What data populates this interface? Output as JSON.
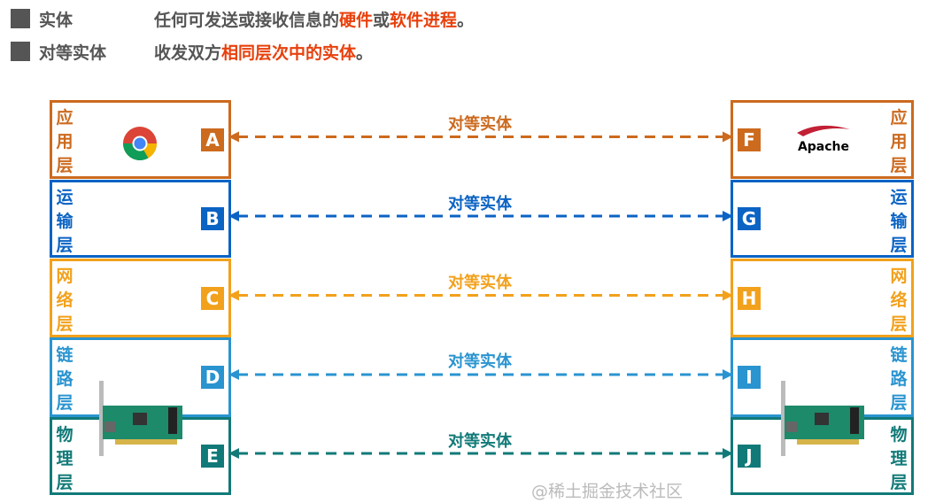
{
  "definitions": [
    {
      "term": "实体",
      "desc_pre": "任何可发送或接收信息的",
      "hl1": "硬件",
      "mid": "或",
      "hl2": "软件进程",
      "post": "。"
    },
    {
      "term": "对等实体",
      "desc_pre": "收发双方",
      "hl1": "相同层次中的实体",
      "mid": "",
      "hl2": "",
      "post": "。"
    }
  ],
  "link_label": "对等实体",
  "layers": [
    {
      "name": "应用层",
      "left": "A",
      "right": "F",
      "color": "#cc6a1e"
    },
    {
      "name": "运输层",
      "left": "B",
      "right": "G",
      "color": "#0b63c4"
    },
    {
      "name": "网络层",
      "left": "C",
      "right": "H",
      "color": "#f2a11c"
    },
    {
      "name": "链路层",
      "left": "D",
      "right": "I",
      "color": "#2a94d0"
    },
    {
      "name": "物理层",
      "left": "E",
      "right": "J",
      "color": "#117a78"
    }
  ],
  "icons": {
    "left_app": "chrome-logo",
    "right_app": "apache-logo",
    "nic": "network-card"
  },
  "apache_text": "Apache",
  "watermark": "@稀土掘金技术社区"
}
